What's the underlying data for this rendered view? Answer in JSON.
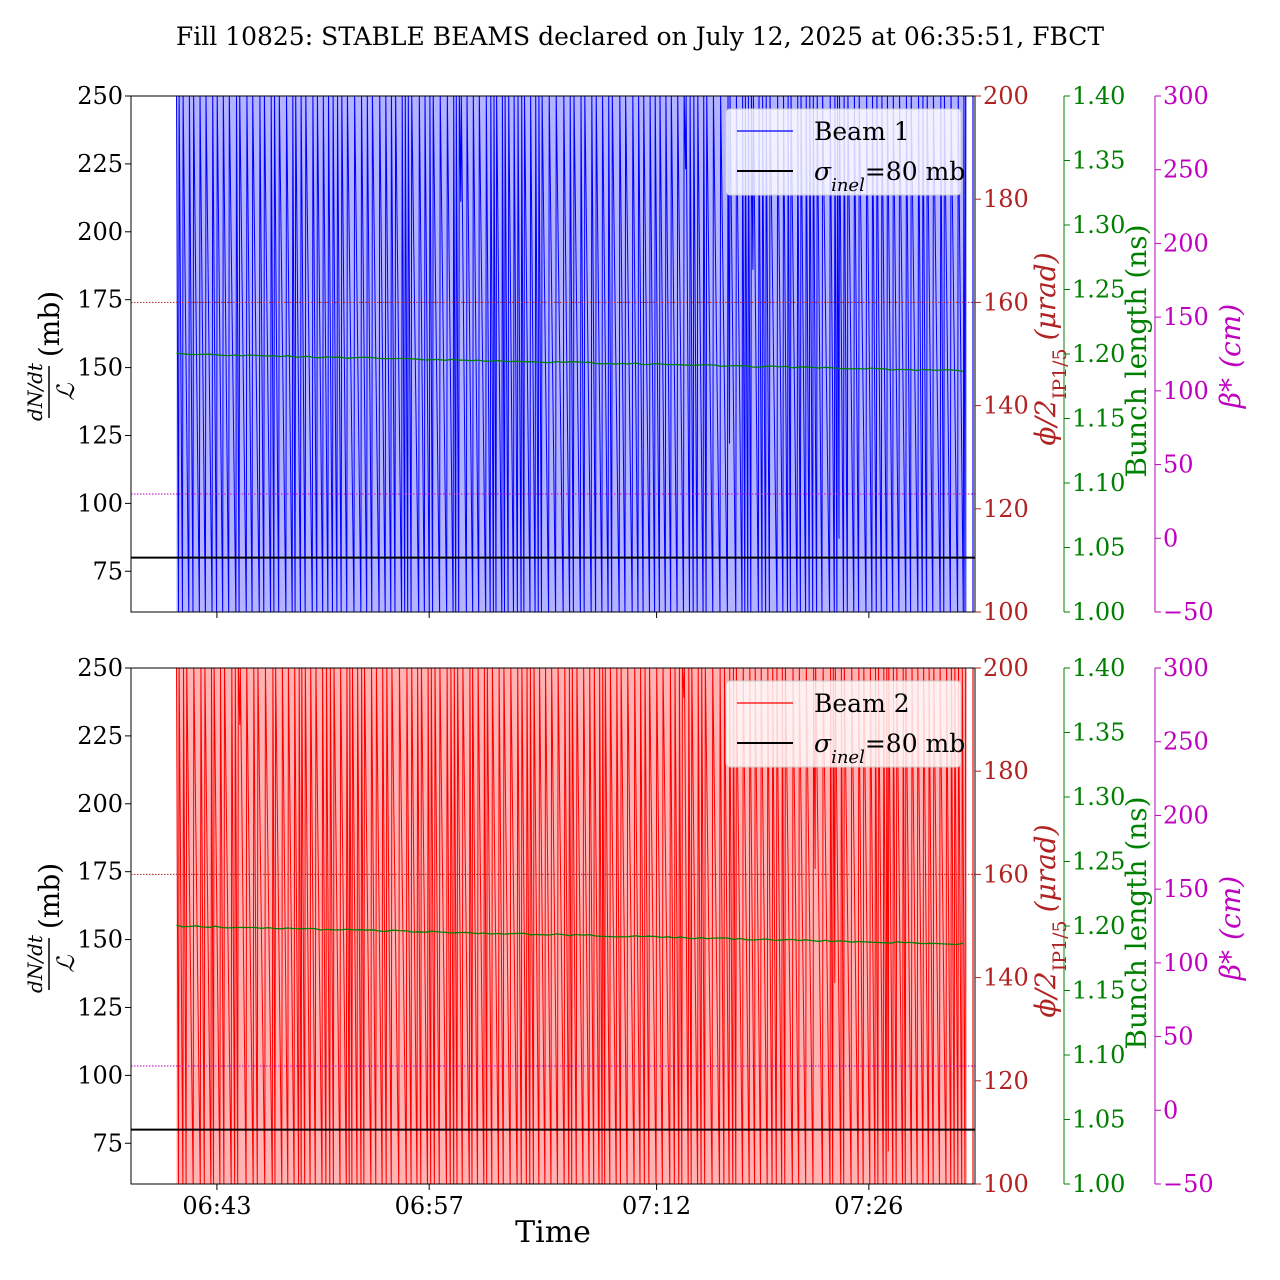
{
  "title": "Fill 10825: STABLE BEAMS declared on July 12, 2025 at 06:35:51, FBCT",
  "xlabel": "Time",
  "time_ticks": [
    "06:43",
    "06:57",
    "07:12",
    "07:26"
  ],
  "axes_labels": {
    "left_fraction_num": "dN/dt",
    "left_fraction_den": "ℒ",
    "left_unit": "(mb)",
    "crossing_phi": "ϕ/2",
    "crossing_sub": "IP1/5",
    "crossing_unit": "(μrad)",
    "bunch_length": "Bunch length (ns)",
    "beta_star": "β*",
    "beta_unit": "(cm)"
  },
  "colors": {
    "beam1": "#0000ff",
    "beam1_fill": "#b3b3ff",
    "beam2": "#ff0000",
    "beam2_fill": "#ffb3b3",
    "crossing_axis": "#b22222",
    "bunch_axis": "#008000",
    "beta_axis": "#c000c0",
    "reference": "#000000"
  },
  "chart_data": [
    {
      "type": "line",
      "panel": "top",
      "legend": [
        "Beam 1",
        "σinel=80 mb"
      ],
      "legend_placement": "top-right",
      "x_range": [
        "06:37:20",
        "07:33:00"
      ],
      "x_ticks": [
        "06:43",
        "06:57",
        "07:12",
        "07:26"
      ],
      "y_left": {
        "ticks": [
          75,
          100,
          125,
          150,
          175,
          200,
          225,
          250
        ],
        "range": [
          60,
          250
        ]
      },
      "y_crossing": {
        "ticks": [
          100,
          120,
          140,
          160,
          180,
          200
        ],
        "range": [
          100,
          200
        ],
        "value": 160
      },
      "y_bunch_length": {
        "ticks": [
          "1.00",
          "1.05",
          "1.10",
          "1.15",
          "1.20",
          "1.25",
          "1.30",
          "1.35",
          "1.40"
        ],
        "range": [
          1.0,
          1.4
        ],
        "start": 1.2,
        "end": 1.187
      },
      "y_beta": {
        "ticks": [
          -50,
          0,
          50,
          100,
          150,
          200,
          250,
          300
        ],
        "range": [
          -50,
          300
        ],
        "value": 30
      },
      "sigma_inel": 80,
      "series": [
        {
          "name": "Beam 1",
          "x_start": "06:40:20",
          "x_end": "07:33:00",
          "note_values": "spikes mostly above 250 mb",
          "dips": [
            211,
            223,
            122,
            186,
            87
          ]
        },
        {
          "name": "σinel=80 mb",
          "values": [
            80
          ]
        }
      ]
    },
    {
      "type": "line",
      "panel": "bottom",
      "legend": [
        "Beam 2",
        "σinel=80 mb"
      ],
      "legend_placement": "top-right",
      "x_range": [
        "06:37:20",
        "07:33:00"
      ],
      "x_ticks": [
        "06:43",
        "06:57",
        "07:12",
        "07:26"
      ],
      "y_left": {
        "ticks": [
          75,
          100,
          125,
          150,
          175,
          200,
          225,
          250
        ],
        "range": [
          60,
          250
        ]
      },
      "y_crossing": {
        "ticks": [
          100,
          120,
          140,
          160,
          180,
          200
        ],
        "range": [
          100,
          200
        ],
        "value": 160
      },
      "y_bunch_length": {
        "ticks": [
          "1.00",
          "1.05",
          "1.10",
          "1.15",
          "1.20",
          "1.25",
          "1.30",
          "1.35",
          "1.40"
        ],
        "range": [
          1.0,
          1.4
        ],
        "start": 1.2,
        "end": 1.186
      },
      "y_beta": {
        "ticks": [
          -50,
          0,
          50,
          100,
          150,
          200,
          250,
          300
        ],
        "range": [
          -50,
          300
        ],
        "value": 30
      },
      "sigma_inel": 80,
      "series": [
        {
          "name": "Beam 2",
          "x_start": "06:40:20",
          "x_end": "07:33:00",
          "dips": [
            229,
            239,
            176,
            134,
            72
          ]
        },
        {
          "name": "σinel=80 mb",
          "values": [
            80
          ]
        }
      ]
    }
  ]
}
